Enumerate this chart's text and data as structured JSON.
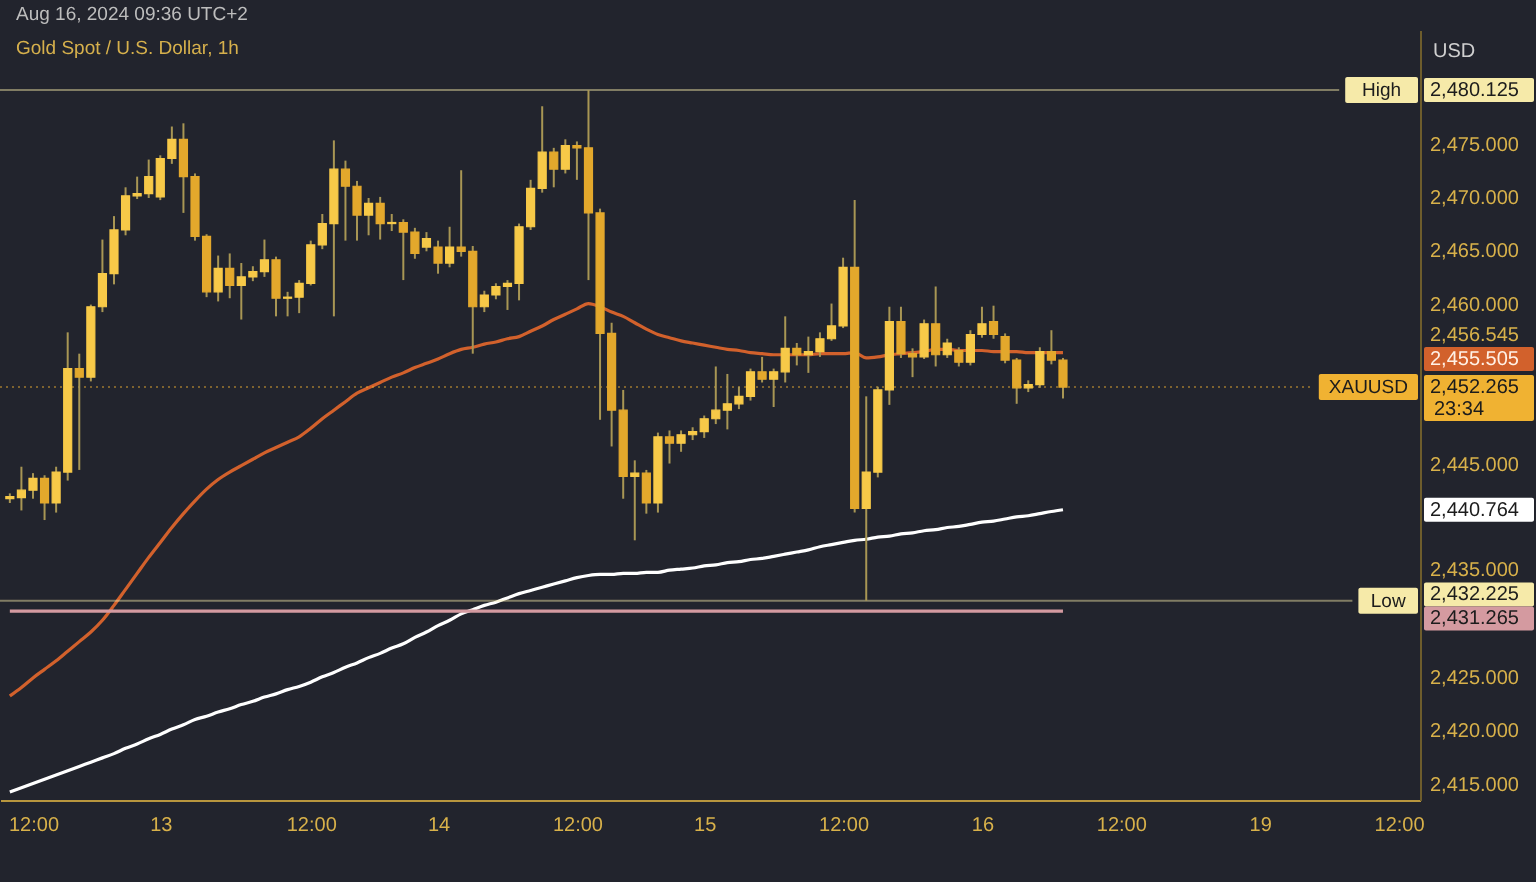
{
  "chart_data": {
    "type": "candlestick",
    "title": "Gold Spot / U.S. Dollar, 1h",
    "ylabel": "USD",
    "annotations": [
      "Aug 16, 2024 09:36 UTC+2",
      "23:34"
    ],
    "categories": [
      null,
      null,
      "12:00",
      null,
      null,
      null,
      null,
      null,
      null,
      null,
      null,
      null,
      null,
      "13",
      null,
      null,
      null,
      null,
      null,
      null,
      null,
      null,
      null,
      null,
      null,
      null,
      "12:00",
      null,
      null,
      null,
      null,
      null,
      null,
      null,
      null,
      null,
      null,
      "14",
      null,
      null,
      null,
      null,
      null,
      null,
      null,
      null,
      null,
      null,
      null,
      "12:00",
      null,
      null,
      null,
      null,
      null,
      null,
      null,
      null,
      null,
      null,
      "15",
      null,
      null,
      null,
      null,
      null,
      null,
      null,
      null,
      null,
      null,
      null,
      "12:00",
      null,
      null,
      null,
      null,
      null,
      null,
      null,
      null,
      null,
      null,
      null,
      "16",
      null,
      null,
      null,
      null,
      null,
      null,
      null,
      null,
      null,
      null,
      null,
      "12:00",
      null,
      null,
      null,
      null,
      null,
      null,
      null,
      null,
      null,
      null,
      null,
      "19",
      null,
      null,
      null,
      null,
      null,
      null,
      null,
      null,
      null,
      null,
      null,
      "12:00",
      null
    ],
    "ohlc": [
      [
        2441.8,
        2442.3,
        2441.4,
        2442.0
      ],
      [
        2441.9,
        2444.8,
        2440.7,
        2442.6
      ],
      [
        2442.6,
        2444.2,
        2441.8,
        2443.7
      ],
      [
        2443.7,
        2444.0,
        2439.8,
        2441.4
      ],
      [
        2441.4,
        2444.8,
        2440.5,
        2444.3
      ],
      [
        2444.3,
        2457.4,
        2443.5,
        2454.0
      ],
      [
        2454.0,
        2455.4,
        2444.5,
        2453.2
      ],
      [
        2453.2,
        2460.0,
        2452.8,
        2459.8
      ],
      [
        2459.8,
        2466.1,
        2459.3,
        2462.9
      ],
      [
        2462.9,
        2468.3,
        2461.9,
        2467.0
      ],
      [
        2467.0,
        2471.0,
        2466.5,
        2470.2
      ],
      [
        2470.2,
        2472.0,
        2469.9,
        2470.4
      ],
      [
        2470.4,
        2473.6,
        2470.0,
        2472.0
      ],
      [
        2470.1,
        2474.0,
        2469.8,
        2473.7
      ],
      [
        2473.7,
        2476.7,
        2473.2,
        2475.5
      ],
      [
        2475.5,
        2477.0,
        2468.6,
        2472.0
      ],
      [
        2472.0,
        2472.3,
        2466.0,
        2466.4
      ],
      [
        2466.4,
        2466.6,
        2460.7,
        2461.2
      ],
      [
        2461.2,
        2464.6,
        2460.3,
        2463.4
      ],
      [
        2463.4,
        2464.8,
        2460.6,
        2461.8
      ],
      [
        2461.8,
        2463.9,
        2458.6,
        2462.6
      ],
      [
        2462.6,
        2463.6,
        2462.2,
        2463.1
      ],
      [
        2463.1,
        2466.1,
        2462.6,
        2464.2
      ],
      [
        2464.2,
        2464.5,
        2458.9,
        2460.6
      ],
      [
        2460.6,
        2461.2,
        2458.9,
        2460.7
      ],
      [
        2460.7,
        2462.3,
        2459.2,
        2462.0
      ],
      [
        2462.0,
        2466.0,
        2461.8,
        2465.6
      ],
      [
        2465.6,
        2468.5,
        2465.2,
        2467.6
      ],
      [
        2467.6,
        2475.4,
        2458.9,
        2472.7
      ],
      [
        2472.7,
        2473.5,
        2466.0,
        2471.1
      ],
      [
        2471.1,
        2471.6,
        2466.0,
        2468.4
      ],
      [
        2468.4,
        2470.0,
        2466.5,
        2469.5
      ],
      [
        2469.5,
        2470.1,
        2466.1,
        2467.6
      ],
      [
        2467.6,
        2468.5,
        2466.9,
        2467.7
      ],
      [
        2467.7,
        2468.0,
        2462.3,
        2466.8
      ],
      [
        2466.8,
        2467.2,
        2464.3,
        2464.8
      ],
      [
        2465.4,
        2466.8,
        2465.0,
        2466.2
      ],
      [
        2465.4,
        2466.0,
        2462.9,
        2463.9
      ],
      [
        2463.9,
        2467.3,
        2463.5,
        2465.4
      ],
      [
        2465.4,
        2472.6,
        2464.5,
        2465.0
      ],
      [
        2465.0,
        2465.5,
        2455.4,
        2459.8
      ],
      [
        2459.8,
        2461.3,
        2459.3,
        2460.9
      ],
      [
        2460.9,
        2462.0,
        2460.5,
        2461.7
      ],
      [
        2461.7,
        2462.3,
        2459.5,
        2462.0
      ],
      [
        2462.0,
        2467.6,
        2460.4,
        2467.3
      ],
      [
        2467.3,
        2471.7,
        2467.0,
        2470.9
      ],
      [
        2470.9,
        2478.6,
        2470.5,
        2474.3
      ],
      [
        2474.3,
        2474.7,
        2471.0,
        2472.7
      ],
      [
        2472.7,
        2475.5,
        2472.3,
        2474.9
      ],
      [
        2474.9,
        2475.3,
        2471.7,
        2474.7
      ],
      [
        2474.7,
        2480.125,
        2462.3,
        2468.6
      ],
      [
        2468.6,
        2469.0,
        2449.2,
        2457.3
      ],
      [
        2457.3,
        2458.3,
        2446.7,
        2450.1
      ],
      [
        2450.1,
        2452.0,
        2441.8,
        2443.9
      ],
      [
        2443.9,
        2445.4,
        2437.9,
        2444.2
      ],
      [
        2444.2,
        2444.5,
        2440.4,
        2441.4
      ],
      [
        2441.4,
        2448.0,
        2440.5,
        2447.6
      ],
      [
        2447.6,
        2448.2,
        2445.1,
        2447.0
      ],
      [
        2447.0,
        2448.2,
        2446.2,
        2447.8
      ],
      [
        2447.8,
        2448.5,
        2447.3,
        2448.1
      ],
      [
        2448.1,
        2449.6,
        2447.5,
        2449.3
      ],
      [
        2449.3,
        2454.2,
        2448.8,
        2450.1
      ],
      [
        2450.1,
        2453.5,
        2448.3,
        2450.7
      ],
      [
        2450.7,
        2452.3,
        2450.2,
        2451.4
      ],
      [
        2451.4,
        2454.0,
        2451.0,
        2453.7
      ],
      [
        2453.7,
        2455.1,
        2452.7,
        2453.0
      ],
      [
        2453.0,
        2454.0,
        2450.4,
        2453.7
      ],
      [
        2453.7,
        2458.9,
        2452.7,
        2455.9
      ],
      [
        2455.9,
        2456.4,
        2454.3,
        2455.3
      ],
      [
        2455.3,
        2457.0,
        2453.6,
        2455.6
      ],
      [
        2455.6,
        2457.4,
        2455.1,
        2456.8
      ],
      [
        2456.8,
        2460.1,
        2456.6,
        2458.0
      ],
      [
        2458.0,
        2464.4,
        2457.8,
        2463.5
      ],
      [
        2463.5,
        2469.8,
        2440.5,
        2440.9
      ],
      [
        2440.9,
        2451.4,
        2432.225,
        2444.3
      ],
      [
        2444.3,
        2452.3,
        2443.8,
        2452.0
      ],
      [
        2452.0,
        2459.8,
        2450.6,
        2458.4
      ],
      [
        2458.4,
        2459.8,
        2455.0,
        2455.4
      ],
      [
        2455.4,
        2455.9,
        2453.2,
        2455.1
      ],
      [
        2455.1,
        2458.6,
        2454.9,
        2458.2
      ],
      [
        2458.2,
        2461.7,
        2454.2,
        2455.3
      ],
      [
        2455.3,
        2456.8,
        2455.0,
        2456.4
      ],
      [
        2455.7,
        2456.0,
        2454.2,
        2454.6
      ],
      [
        2454.6,
        2457.6,
        2454.3,
        2457.2
      ],
      [
        2457.2,
        2459.8,
        2456.9,
        2458.2
      ],
      [
        2458.4,
        2459.9,
        2456.8,
        2457.2
      ],
      [
        2457.0,
        2457.3,
        2454.5,
        2454.8
      ],
      [
        2454.8,
        2455.0,
        2450.7,
        2452.2
      ],
      [
        2452.2,
        2452.9,
        2451.8,
        2452.5
      ],
      [
        2452.5,
        2456.0,
        2452.2,
        2455.6
      ],
      [
        2455.6,
        2457.6,
        2454.4,
        2454.8
      ],
      [
        2454.8,
        2455.0,
        2451.2,
        2452.265
      ],
      null,
      null,
      null,
      null,
      null,
      null,
      null,
      null,
      null,
      null,
      null,
      null,
      null,
      null,
      null,
      null,
      null,
      null,
      null,
      null,
      null,
      null,
      null,
      null,
      null,
      null,
      null,
      null,
      null,
      null
    ],
    "series": [
      {
        "type": "line",
        "color": "#d2612c",
        "values": [
          2423.3,
          2424.1,
          2425.0,
          2425.8,
          2426.6,
          2427.5,
          2428.4,
          2429.3,
          2430.4,
          2431.8,
          2433.3,
          2434.8,
          2436.3,
          2437.7,
          2439.1,
          2440.4,
          2441.6,
          2442.7,
          2443.6,
          2444.3,
          2444.9,
          2445.5,
          2446.1,
          2446.6,
          2447.1,
          2447.6,
          2448.4,
          2449.3,
          2450.1,
          2450.9,
          2451.7,
          2452.2,
          2452.7,
          2453.2,
          2453.6,
          2454.1,
          2454.5,
          2454.9,
          2455.4,
          2455.8,
          2456.0,
          2456.3,
          2456.5,
          2456.8,
          2457.0,
          2457.5,
          2458.0,
          2458.6,
          2459.1,
          2459.6,
          2460.1,
          2459.8,
          2459.3,
          2458.9,
          2458.3,
          2457.7,
          2457.2,
          2456.9,
          2456.6,
          2456.4,
          2456.2,
          2456.0,
          2455.8,
          2455.7,
          2455.5,
          2455.4,
          2455.3,
          2455.3,
          2455.3,
          2455.3,
          2455.4,
          2455.4,
          2455.4,
          2455.5,
          2455.0,
          2455.1,
          2455.3,
          2455.4,
          2455.5,
          2455.6,
          2455.8,
          2455.8,
          2455.7,
          2455.7,
          2455.7,
          2455.6,
          2455.6,
          2455.6,
          2455.5,
          2455.5,
          2455.5,
          2455.505,
          null,
          null,
          null,
          null,
          null,
          null,
          null,
          null,
          null,
          null,
          null,
          null,
          null,
          null,
          null,
          null,
          null,
          null,
          null,
          null,
          null,
          null,
          null,
          null,
          null,
          null,
          null,
          null,
          null,
          null
        ]
      },
      {
        "type": "line",
        "color": "#ffffff",
        "values": [
          2414.3,
          2414.7,
          2415.1,
          2415.5,
          2415.9,
          2416.3,
          2416.7,
          2417.1,
          2417.5,
          2417.9,
          2418.4,
          2418.8,
          2419.3,
          2419.7,
          2420.2,
          2420.6,
          2421.1,
          2421.4,
          2421.8,
          2422.1,
          2422.5,
          2422.8,
          2423.2,
          2423.5,
          2423.9,
          2424.2,
          2424.6,
          2425.1,
          2425.5,
          2426.0,
          2426.4,
          2426.9,
          2427.3,
          2427.8,
          2428.2,
          2428.8,
          2429.3,
          2429.9,
          2430.4,
          2431.0,
          2431.4,
          2431.8,
          2432.1,
          2432.5,
          2432.9,
          2433.2,
          2433.5,
          2433.8,
          2434.1,
          2434.4,
          2434.6,
          2434.7,
          2434.7,
          2434.8,
          2434.8,
          2434.9,
          2434.9,
          2435.1,
          2435.2,
          2435.3,
          2435.5,
          2435.6,
          2435.8,
          2435.9,
          2436.1,
          2436.2,
          2436.4,
          2436.6,
          2436.8,
          2437.0,
          2437.3,
          2437.5,
          2437.7,
          2437.9,
          2438.0,
          2438.2,
          2438.3,
          2438.5,
          2438.6,
          2438.8,
          2438.9,
          2439.1,
          2439.2,
          2439.4,
          2439.6,
          2439.7,
          2439.9,
          2440.1,
          2440.2,
          2440.4,
          2440.6,
          2440.764,
          null,
          null,
          null,
          null,
          null,
          null,
          null,
          null,
          null,
          null,
          null,
          null,
          null,
          null,
          null,
          null,
          null,
          null,
          null,
          null,
          null,
          null,
          null,
          null,
          null,
          null,
          null,
          null,
          null,
          null
        ]
      },
      {
        "type": "line",
        "color": "#d49aa0",
        "values": [
          2431.265,
          2431.265,
          2431.265,
          2431.265,
          2431.265,
          2431.265,
          2431.265,
          2431.265,
          2431.265,
          2431.265,
          2431.265,
          2431.265,
          2431.265,
          2431.265,
          2431.265,
          2431.265,
          2431.265,
          2431.265,
          2431.265,
          2431.265,
          2431.265,
          2431.265,
          2431.265,
          2431.265,
          2431.265,
          2431.265,
          2431.265,
          2431.265,
          2431.265,
          2431.265,
          2431.265,
          2431.265,
          2431.265,
          2431.265,
          2431.265,
          2431.265,
          2431.265,
          2431.265,
          2431.265,
          2431.265,
          2431.265,
          2431.265,
          2431.265,
          2431.265,
          2431.265,
          2431.265,
          2431.265,
          2431.265,
          2431.265,
          2431.265,
          2431.265,
          2431.265,
          2431.265,
          2431.265,
          2431.265,
          2431.265,
          2431.265,
          2431.265,
          2431.265,
          2431.265,
          2431.265,
          2431.265,
          2431.265,
          2431.265,
          2431.265,
          2431.265,
          2431.265,
          2431.265,
          2431.265,
          2431.265,
          2431.265,
          2431.265,
          2431.265,
          2431.265,
          2431.265,
          2431.265,
          2431.265,
          2431.265,
          2431.265,
          2431.265,
          2431.265,
          2431.265,
          2431.265,
          2431.265,
          2431.265,
          2431.265,
          2431.265,
          2431.265,
          2431.265,
          2431.265,
          2431.265,
          2431.265,
          null,
          null,
          null,
          null,
          null,
          null,
          null,
          null,
          null,
          null,
          null,
          null,
          null,
          null,
          null,
          null,
          null,
          null,
          null,
          null,
          null,
          null,
          null,
          null,
          null,
          null,
          null,
          null,
          null,
          null
        ]
      }
    ],
    "ref_lines": [
      {
        "axis": "y",
        "value": 2480.125,
        "label": "High",
        "color": "#f6eaa9"
      },
      {
        "axis": "y",
        "value": 2432.225,
        "label": "Low",
        "color": "#f6eaa9"
      },
      {
        "axis": "y",
        "value": 2452.265,
        "label": "XAUUSD",
        "color": "#f0b232",
        "line_style": "dotted"
      }
    ],
    "ylim": [
      2413.55,
      2485.75
    ],
    "yticks": [
      {
        "value": 2480.125,
        "label": "2,480.125"
      },
      {
        "value": 2475,
        "label": "2,475.000"
      },
      {
        "value": 2470,
        "label": "2,470.000"
      },
      {
        "value": 2465,
        "label": "2,465.000"
      },
      {
        "value": 2460,
        "label": "2,460.000"
      },
      {
        "value": 2456.545,
        "label": "2,456.545"
      },
      {
        "value": 2455.505,
        "label": "2,455.505"
      },
      {
        "value": 2452.265,
        "label": "2,452.265"
      },
      {
        "value": 2445,
        "label": "2,445.000"
      },
      {
        "value": 2440.764,
        "label": "2,440.764"
      },
      {
        "value": 2435,
        "label": "2,435.000"
      },
      {
        "value": 2432.225,
        "label": "2,432.225"
      },
      {
        "value": 2431.265,
        "label": "2,431.265"
      },
      {
        "value": 2425,
        "label": "2,425.000"
      },
      {
        "value": 2420,
        "label": "2,420.000"
      },
      {
        "value": 2415,
        "label": "2,415.000"
      }
    ]
  }
}
